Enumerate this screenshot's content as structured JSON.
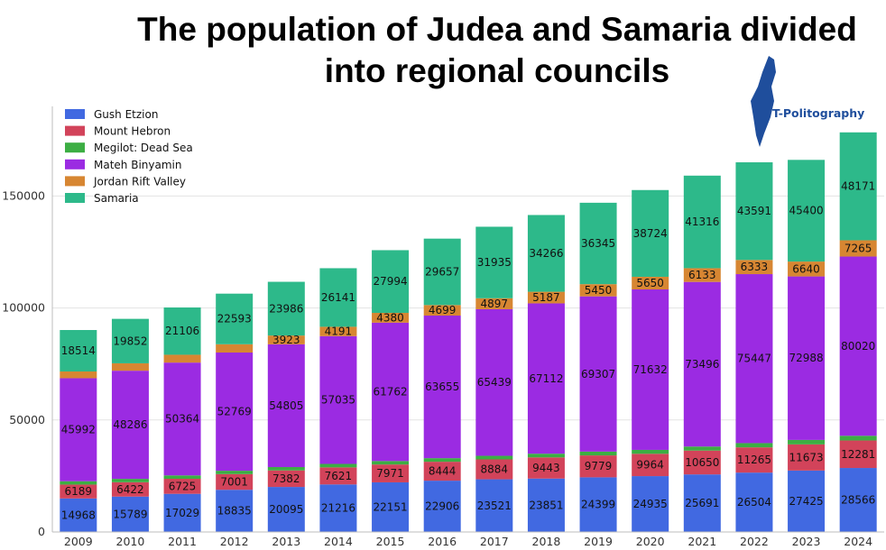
{
  "chart_data": {
    "type": "bar",
    "stacked": true,
    "title": "The population of Judea and Samaria divided into regional councils",
    "brand": "T-Politography",
    "categories": [
      "2009",
      "2010",
      "2011",
      "2012",
      "2013",
      "2014",
      "2015",
      "2016",
      "2017",
      "2018",
      "2019",
      "2020",
      "2021",
      "2022",
      "2023",
      "2024"
    ],
    "ylim": [
      0,
      190000
    ],
    "yticks": [
      0,
      50000,
      100000,
      150000
    ],
    "ytick_labels": [
      "0",
      "50000",
      "100000",
      "150000"
    ],
    "grid": true,
    "legend_position": "top-left",
    "series": [
      {
        "name": "Gush Etzion",
        "color": "#4169e1",
        "labeled": true,
        "values": [
          14968,
          15789,
          17029,
          18835,
          20095,
          21216,
          22151,
          22906,
          23521,
          23851,
          24399,
          24935,
          25691,
          26504,
          27425,
          28566
        ]
      },
      {
        "name": "Mount Hebron",
        "color": "#d2435a",
        "labeled": true,
        "values": [
          6189,
          6422,
          6725,
          7001,
          7382,
          7621,
          7971,
          8444,
          8884,
          9443,
          9779,
          9964,
          10650,
          11265,
          11673,
          12281
        ]
      },
      {
        "name": "Megilot: Dead Sea",
        "color": "#3cae43",
        "labeled": false,
        "values": [
          1500,
          1500,
          1500,
          1500,
          1500,
          1550,
          1550,
          1600,
          1600,
          1650,
          1700,
          1750,
          1800,
          1900,
          2000,
          2100
        ]
      },
      {
        "name": "Mateh Binyamin",
        "color": "#9b2be2",
        "labeled": true,
        "values": [
          45992,
          48286,
          50364,
          52769,
          54805,
          57035,
          61762,
          63655,
          65439,
          67112,
          69307,
          71632,
          73496,
          75447,
          72988,
          80020
        ]
      },
      {
        "name": "Jordan Rift Valley",
        "color": "#d78632",
        "labeled": true,
        "values": [
          3000,
          3300,
          3500,
          3700,
          3923,
          4191,
          4380,
          4699,
          4897,
          5187,
          5450,
          5650,
          6133,
          6333,
          6640,
          7265
        ],
        "value_labels": [
          "",
          "",
          "",
          "",
          "3923",
          "4191",
          "4380",
          "4699",
          "4897",
          "5187",
          "5450",
          "5650",
          "6133",
          "6333",
          "6640",
          "7265"
        ]
      },
      {
        "name": "Samaria",
        "color": "#2db98a",
        "labeled": true,
        "values": [
          18514,
          19852,
          21106,
          22593,
          23986,
          26141,
          27994,
          29657,
          31935,
          34266,
          36345,
          38724,
          41316,
          43591,
          45400,
          48171
        ]
      }
    ]
  }
}
